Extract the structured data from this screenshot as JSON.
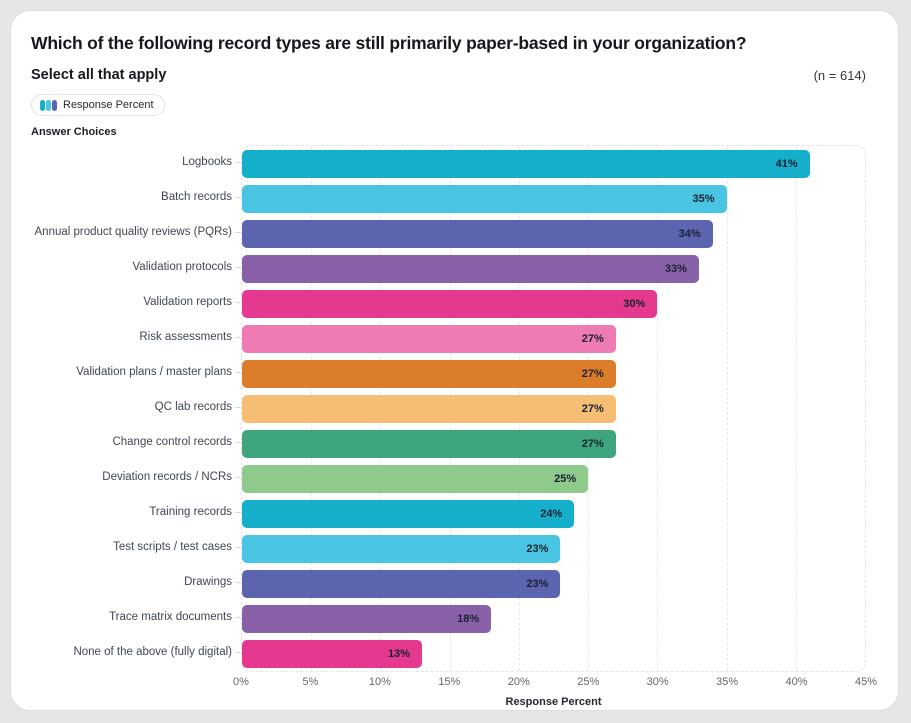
{
  "header": {
    "title": "Which of the following record types are still primarily paper-based in your organization?",
    "subtitle": "Select all that apply",
    "sample_size": "(n = 614)",
    "legend_label": "Response Percent",
    "answer_choices_label": "Answer Choices"
  },
  "colors": {
    "page_background": "#e6e6e9",
    "card_background": "#ffffff",
    "legend_icon": [
      "#16AFCB",
      "#49C4E3",
      "#5C64B0"
    ],
    "palette": [
      "#16AFCB",
      "#49C4E3",
      "#5C64B0",
      "#8961A9",
      "#E5398F",
      "#EE7BB4",
      "#DC7D2B",
      "#F6BE75",
      "#3EA57E",
      "#8DCA8C"
    ]
  },
  "chart_data": {
    "type": "bar",
    "orientation": "horizontal",
    "title": "Which of the following record types are still primarily paper-based in your organization?",
    "categories": [
      "Logbooks",
      "Batch records",
      "Annual product quality reviews (PQRs)",
      "Validation protocols",
      "Validation reports",
      "Risk assessments",
      "Validation plans / master plans",
      "QC lab records",
      "Change control records",
      "Deviation records / NCRs",
      "Training records",
      "Test scripts / test cases",
      "Drawings",
      "Trace matrix documents",
      "None of the above (fully digital)"
    ],
    "values": [
      41,
      35,
      34,
      33,
      30,
      27,
      27,
      27,
      27,
      25,
      24,
      23,
      23,
      18,
      13
    ],
    "value_labels": [
      "41%",
      "35%",
      "34%",
      "33%",
      "30%",
      "27%",
      "27%",
      "27%",
      "27%",
      "25%",
      "24%",
      "23%",
      "23%",
      "18%",
      "13%"
    ],
    "bar_colors": [
      "#16AFCB",
      "#49C4E3",
      "#5C64B0",
      "#8961A9",
      "#E5398F",
      "#EE7BB4",
      "#DC7D2B",
      "#F6BE75",
      "#3EA57E",
      "#8DCA8C",
      "#16AFCB",
      "#49C4E3",
      "#5C64B0",
      "#8961A9",
      "#E5398F"
    ],
    "xlabel": "Response Percent",
    "ylabel": "Answer Choices",
    "xlim": [
      0,
      45
    ],
    "x_ticks": [
      "0%",
      "5%",
      "10%",
      "15%",
      "20%",
      "25%",
      "30%",
      "35%",
      "40%",
      "45%"
    ],
    "grid": "dashed-vertical",
    "legend": [
      "Response Percent"
    ],
    "legend_position": "top-left"
  }
}
